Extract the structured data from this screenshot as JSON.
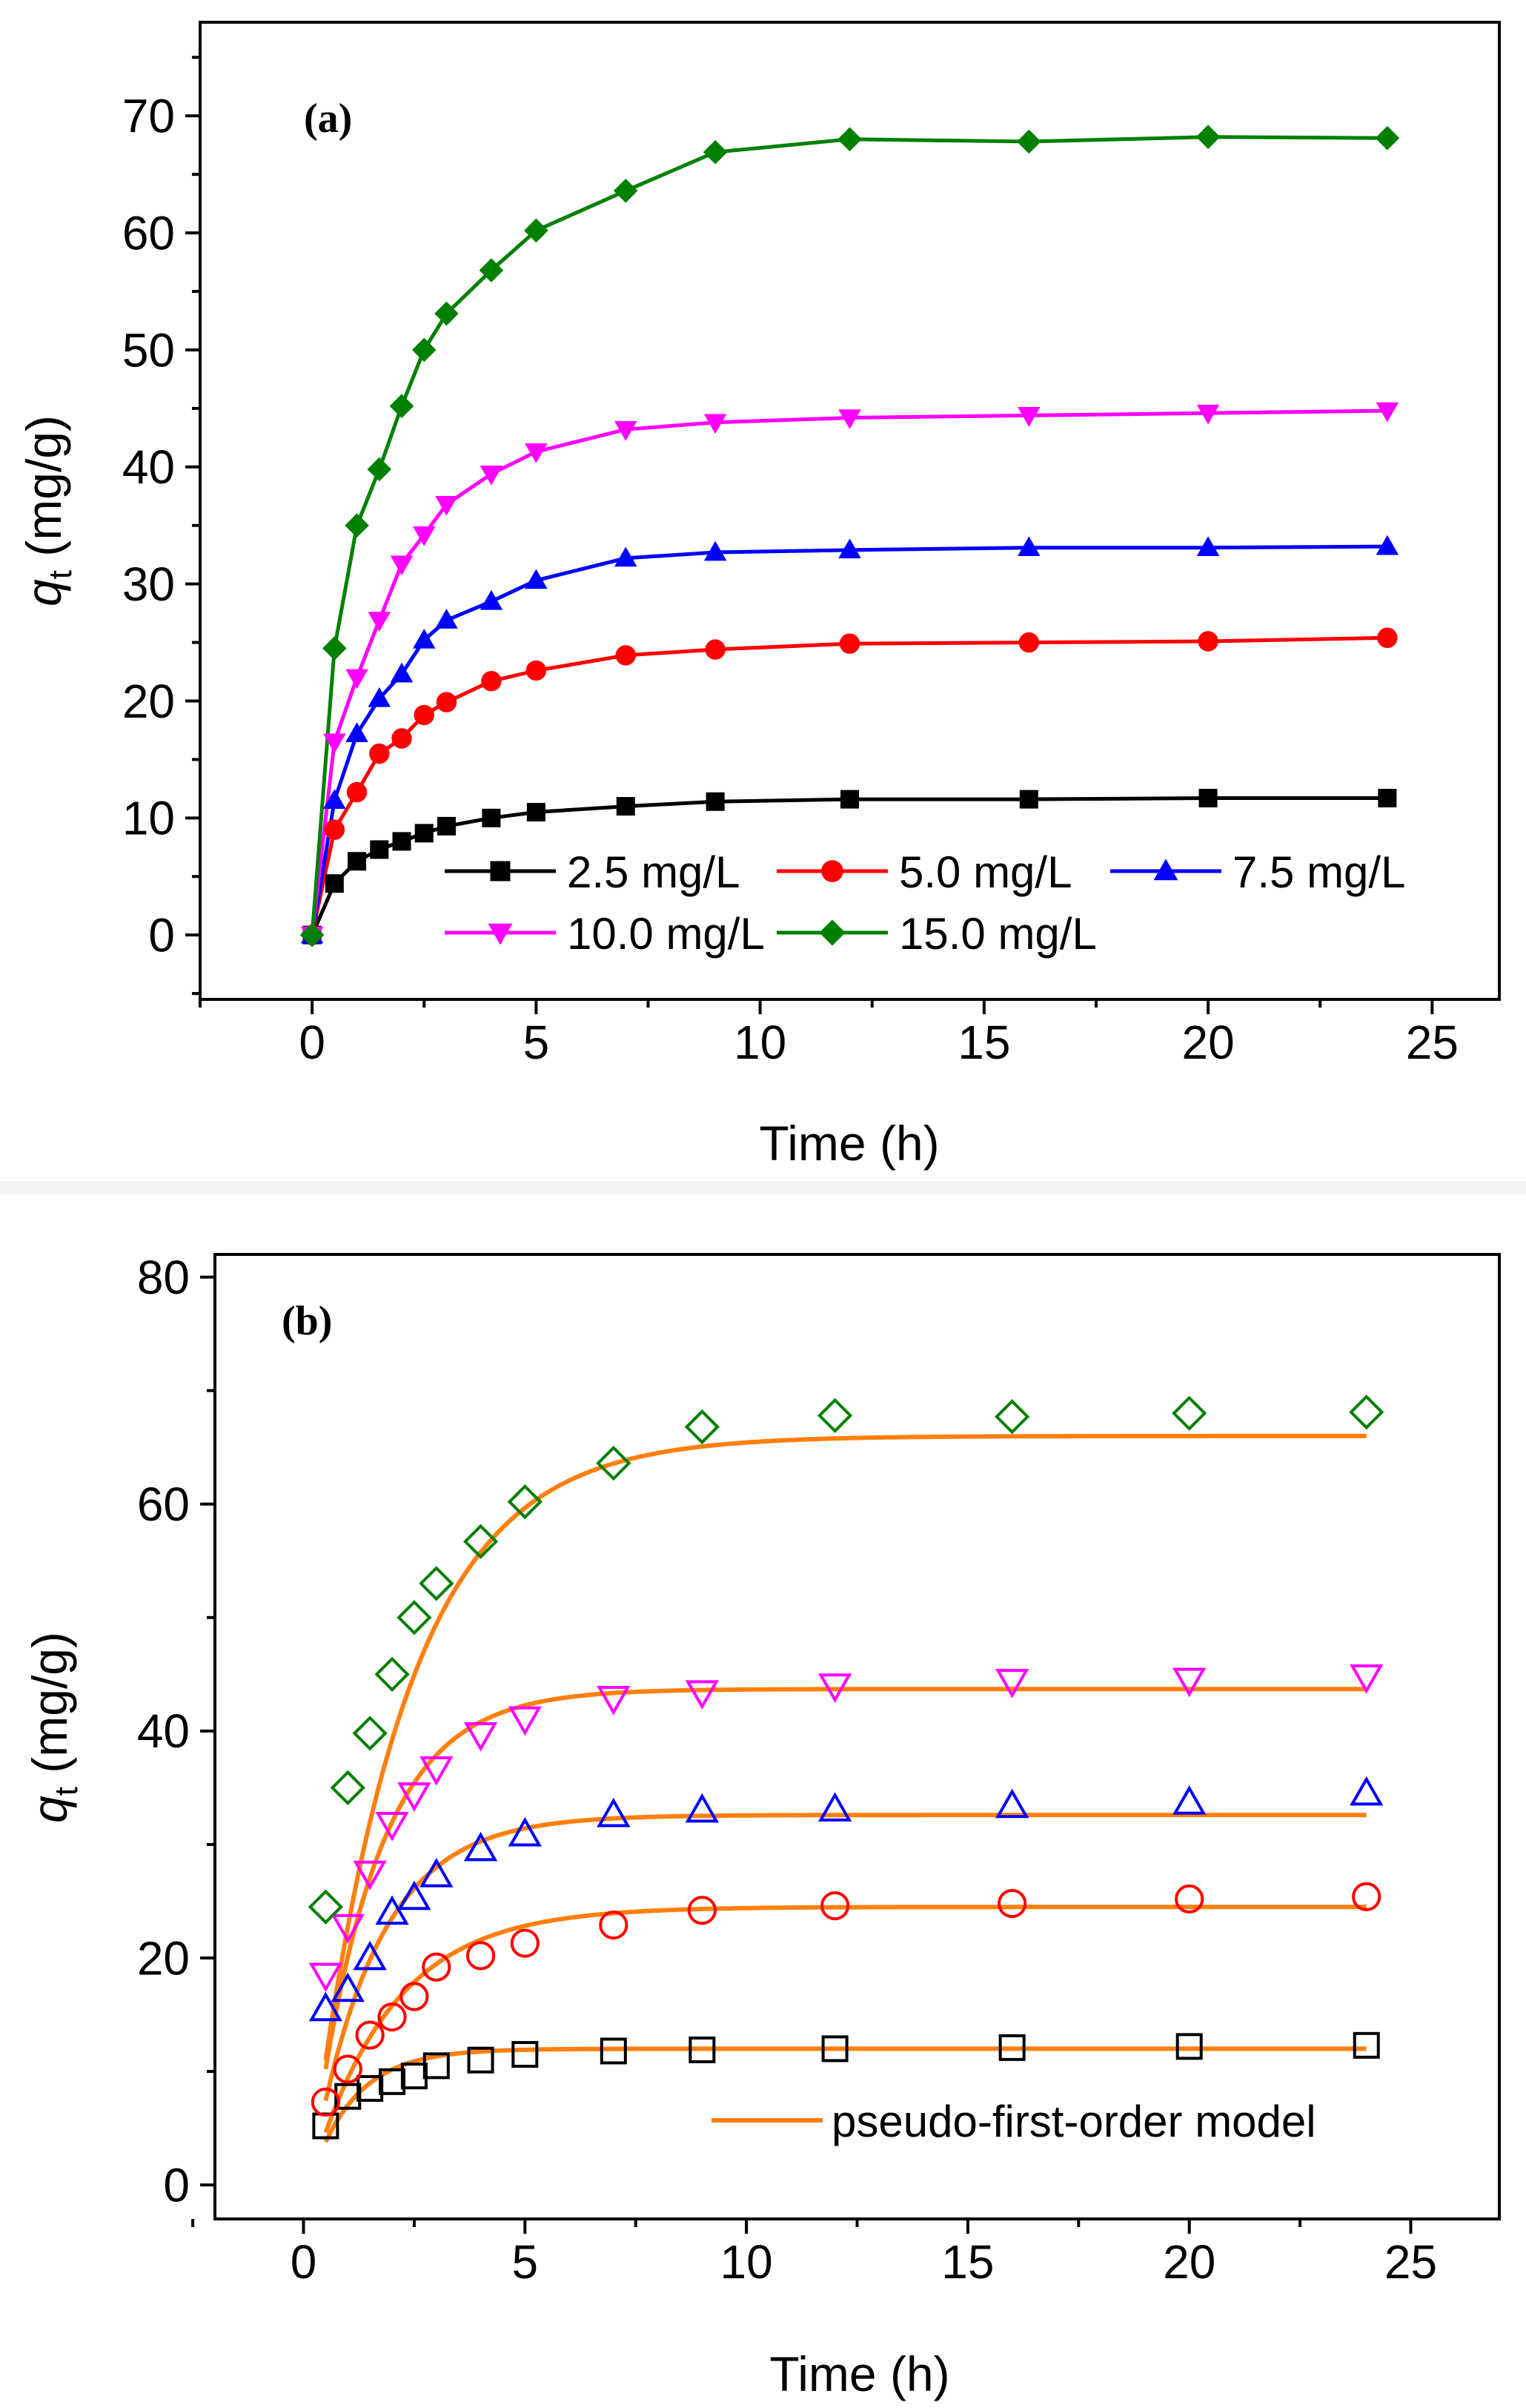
{
  "chart_data": [
    {
      "type": "line",
      "panel": "(a)",
      "xlabel": "Time (h)",
      "ylabel_main": "q",
      "ylabel_sub": "t",
      "ylabel_unit": " (mg/g)",
      "xlim": [
        -2.5,
        26.5
      ],
      "ylim": [
        -5.5,
        78
      ],
      "xticks": [
        0,
        5,
        10,
        15,
        20,
        25
      ],
      "yticks": [
        0,
        10,
        20,
        30,
        40,
        50,
        60,
        70
      ],
      "x": [
        0,
        0.5,
        1,
        1.5,
        2,
        2.5,
        3,
        4,
        5,
        7,
        9,
        12,
        16,
        20,
        24
      ],
      "legend_position": "bottom-right",
      "series": [
        {
          "name": "2.5 mg/L",
          "color": "#000000",
          "marker": "square",
          "values": [
            0,
            4.4,
            6.3,
            7.3,
            8.0,
            8.7,
            9.3,
            10.0,
            10.5,
            11.0,
            11.4,
            11.6,
            11.6,
            11.7,
            11.7
          ]
        },
        {
          "name": "5.0 mg/L",
          "color": "#ff0000",
          "marker": "circle",
          "values": [
            0,
            9.0,
            12.2,
            15.5,
            16.8,
            18.8,
            19.9,
            21.7,
            22.6,
            23.9,
            24.4,
            24.9,
            25.0,
            25.1,
            25.4
          ]
        },
        {
          "name": "7.5 mg/L",
          "color": "#0000ff",
          "marker": "triangle-up",
          "values": [
            0,
            11.5,
            17.2,
            20.2,
            22.3,
            25.2,
            26.9,
            28.5,
            30.3,
            32.2,
            32.7,
            32.9,
            33.1,
            33.1,
            33.2
          ]
        },
        {
          "name": "10.0 mg/L",
          "color": "#ff00ff",
          "marker": "triangle-down",
          "values": [
            0,
            16.5,
            22.0,
            26.9,
            31.7,
            34.2,
            36.8,
            39.4,
            41.3,
            43.2,
            43.8,
            44.2,
            44.4,
            44.6,
            44.8
          ]
        },
        {
          "name": "15.0 mg/L",
          "color": "#008000",
          "marker": "diamond",
          "values": [
            0,
            24.5,
            35.0,
            39.8,
            45.2,
            50.0,
            53.1,
            56.8,
            60.2,
            63.6,
            66.9,
            68.0,
            67.8,
            68.2,
            68.1
          ]
        }
      ]
    },
    {
      "type": "scatter",
      "panel": "(b)",
      "xlabel": "Time (h)",
      "ylabel_main": "q",
      "ylabel_sub": "t",
      "ylabel_unit": " (mg/g)",
      "xlim": [
        -2,
        27
      ],
      "ylim": [
        -3,
        82
      ],
      "xticks": [
        0,
        5,
        10,
        15,
        20,
        25
      ],
      "yticks": [
        0,
        20,
        40,
        60,
        80
      ],
      "x": [
        0.5,
        1,
        1.5,
        2,
        2.5,
        3,
        4,
        5,
        7,
        9,
        12,
        16,
        20,
        24
      ],
      "legend_position": "bottom-right",
      "legend": [
        {
          "name": "pseudo-first-order model",
          "color": "#ff7f0e"
        }
      ],
      "series": [
        {
          "color": "#000000",
          "marker": "open-square",
          "qe": 12.0,
          "k1": 1.0,
          "values": [
            5.2,
            7.8,
            8.5,
            9.1,
            9.6,
            10.5,
            11.0,
            11.5,
            11.8,
            11.9,
            12.0,
            12.1,
            12.2,
            12.3
          ]
        },
        {
          "color": "#ff0000",
          "marker": "open-circle",
          "qe": 24.5,
          "k1": 0.55,
          "values": [
            7.3,
            10.2,
            13.2,
            14.8,
            16.6,
            19.2,
            20.2,
            21.3,
            22.9,
            24.2,
            24.6,
            24.8,
            25.2,
            25.4
          ]
        },
        {
          "color": "#0000ff",
          "marker": "open-triangle-up",
          "qe": 32.6,
          "k1": 0.68,
          "values": [
            15.5,
            17.2,
            20.0,
            24.0,
            25.3,
            27.3,
            29.6,
            30.9,
            32.6,
            33.0,
            33.1,
            33.4,
            33.7,
            34.5
          ]
        },
        {
          "color": "#ff00ff",
          "marker": "open-triangle-down",
          "qe": 43.7,
          "k1": 0.7,
          "values": [
            18.5,
            22.8,
            27.5,
            31.8,
            34.4,
            36.7,
            39.7,
            41.1,
            42.9,
            43.4,
            44.0,
            44.4,
            44.5,
            44.8
          ]
        },
        {
          "color": "#008000",
          "marker": "open-diamond",
          "qe": 66.0,
          "k1": 0.48,
          "values": [
            24.5,
            35.0,
            39.8,
            45.0,
            50.0,
            53.0,
            56.7,
            60.2,
            63.6,
            66.8,
            67.8,
            67.7,
            68.0,
            68.1
          ]
        }
      ]
    }
  ]
}
